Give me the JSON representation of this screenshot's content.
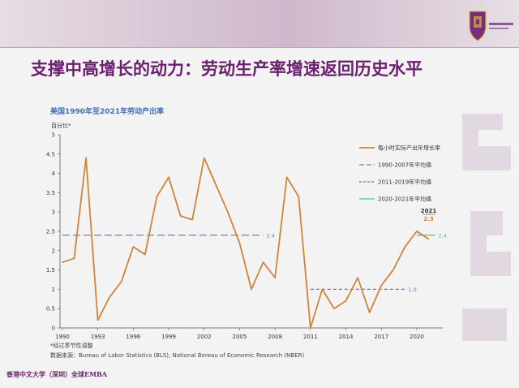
{
  "header": {
    "title": "支撑中高增长的动力：劳动生产率增速返回历史水平"
  },
  "footnote": "*经过季节性调整",
  "source": "数据来源：Bureau of Labor Statistics (BLS), National Bereau of Economic Research (NBER)",
  "footer": {
    "brand": "香港中文大学（深圳）全球EMBA"
  },
  "colors": {
    "title": "#6b1f6f",
    "series": "#d0833a",
    "avg1990": "#5a86c8",
    "avg2011": "#8a5cc0",
    "avg2020": "#4cc96a",
    "label2021": "#e07a2a"
  },
  "chart_data": {
    "type": "line",
    "title": "美国1990年至2021年劳动产出率",
    "ylabel": "百分比*",
    "xlabel": "",
    "xlim": [
      1989.8,
      2022.2
    ],
    "ylim": [
      0,
      5
    ],
    "yticks": [
      "0",
      "0.5",
      "1",
      "1.5",
      "2",
      "2.5",
      "3",
      "3.5",
      "4",
      "4.5",
      "5"
    ],
    "xticks": [
      "1990",
      "1993",
      "1996",
      "1999",
      "2002",
      "2005",
      "2008",
      "2011",
      "2014",
      "2017",
      "2020"
    ],
    "grid": false,
    "legend": "right",
    "series": [
      {
        "name": "每小时实际产出年增长率",
        "x": [
          1990,
          1991,
          1992,
          1993,
          1994,
          1995,
          1996,
          1997,
          1998,
          1999,
          2000,
          2001,
          2002,
          2003,
          2004,
          2005,
          2006,
          2007,
          2008,
          2009,
          2010,
          2011,
          2012,
          2013,
          2014,
          2015,
          2016,
          2017,
          2018,
          2019,
          2020,
          2021
        ],
        "y": [
          1.7,
          1.8,
          4.4,
          0.2,
          0.8,
          1.2,
          2.1,
          1.9,
          3.4,
          3.9,
          2.9,
          2.8,
          4.4,
          3.7,
          3.0,
          2.2,
          1.0,
          1.7,
          1.3,
          3.9,
          3.4,
          0.0,
          1.0,
          0.5,
          0.7,
          1.3,
          0.4,
          1.1,
          1.5,
          2.1,
          2.5,
          2.3
        ]
      }
    ],
    "averages": [
      {
        "name": "1990-2007年平均值",
        "x": [
          1990,
          2007
        ],
        "value": 2.4,
        "label": "2.4"
      },
      {
        "name": "2011-2019年平均值",
        "x": [
          2011,
          2019
        ],
        "value": 1.0,
        "label": "1.0"
      },
      {
        "name": "2020-2021年平均值",
        "x": [
          2020,
          2021
        ],
        "value": 2.4,
        "label": "2.4"
      }
    ],
    "annotations": [
      {
        "text": "2021"
      },
      {
        "text": "2.3"
      }
    ]
  }
}
